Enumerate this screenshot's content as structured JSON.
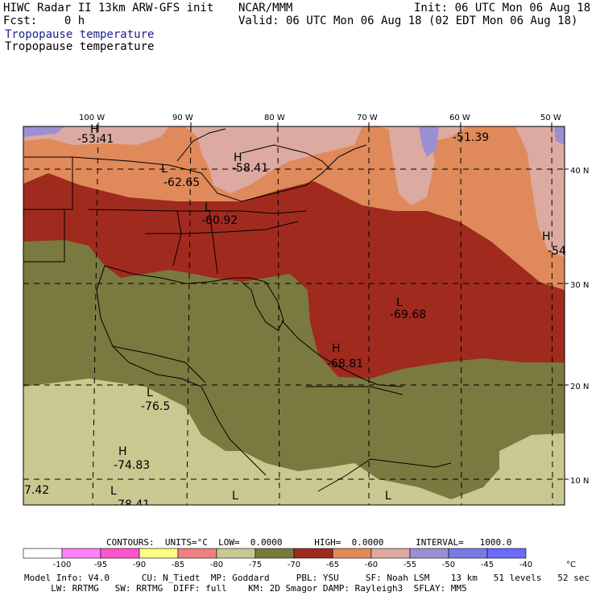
{
  "header": {
    "model": "HIWC Radar II 13km ARW-GFS init",
    "org": "NCAR/MMM",
    "init": "Init: 06 UTC Mon 06 Aug 18",
    "fcst": "Fcst:    0 h",
    "valid": "Valid: 06 UTC Mon 06 Aug 18 (02 EDT Mon 06 Aug 18)",
    "field1": "Tropopause temperature",
    "field2": "Tropopause temperature"
  },
  "axes": {
    "lon": [
      "100 W",
      "90 W",
      "80 W",
      "70 W",
      "60 W",
      "50 W"
    ],
    "lat": [
      "40 N",
      "30 N",
      "20 N",
      "10 N"
    ]
  },
  "markers": [
    {
      "sym": "H",
      "value": "-53.41"
    },
    {
      "sym": "H",
      "value": "-58.41"
    },
    {
      "sym": "L",
      "value": "-62.65"
    },
    {
      "sym": "L",
      "value": "-60.92"
    },
    {
      "sym": "",
      "value": "-51.39"
    },
    {
      "sym": "H",
      "value": "-54"
    },
    {
      "sym": "L",
      "value": "-69.68"
    },
    {
      "sym": "H",
      "value": "-68.81"
    },
    {
      "sym": "L",
      "value": "-76.5"
    },
    {
      "sym": "H",
      "value": "-74.83"
    },
    {
      "sym": "L",
      "value": "-78.41"
    },
    {
      "sym": "",
      "value": "7.42"
    },
    {
      "sym": "L",
      "value": ""
    },
    {
      "sym": "L",
      "value": ""
    }
  ],
  "contours": {
    "line": "CONTOURS:  UNITS=°C  LOW=  0.0000      HIGH=  0.0000      INTERVAL=   1000.0"
  },
  "legend": {
    "labels": [
      "-100",
      "-95",
      "-90",
      "-85",
      "-80",
      "-75",
      "-70",
      "-65",
      "-60",
      "-55",
      "-50",
      "-45",
      "-40"
    ],
    "unit": "°C",
    "colors": [
      "#ffffff",
      "#ff80ff",
      "#ff55cc",
      "#ffff80",
      "#f08080",
      "#c8c890",
      "#7a7a40",
      "#a02a1e",
      "#e0895a",
      "#dcaaa0",
      "#9b8fd4",
      "#7a7ae6",
      "#6a6aff"
    ]
  },
  "footer": {
    "line1": "Model Info: V4.0      CU: N_Tiedt  MP: Goddard     PBL: YSU     SF: Noah LSM    13 km   51 levels   52 sec",
    "line2": "     LW: RRTMG   SW: RRTMG  DIFF: full    KM: 2D Smagor DAMP: Rayleigh3  SFLAY: MM5"
  }
}
